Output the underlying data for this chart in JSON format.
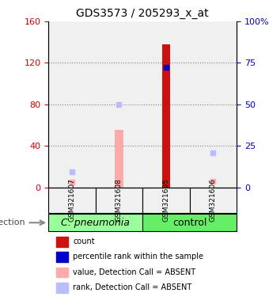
{
  "title": "GDS3573 / 205293_x_at",
  "samples": [
    "GSM321607",
    "GSM321608",
    "GSM321605",
    "GSM321606"
  ],
  "groups": [
    {
      "name": "C. pneumonia",
      "color": "#99ff99",
      "indices": [
        0,
        1
      ]
    },
    {
      "name": "control",
      "color": "#66ee66",
      "indices": [
        2,
        3
      ]
    }
  ],
  "left_ylim": [
    0,
    160
  ],
  "right_ylim": [
    0,
    100
  ],
  "left_yticks": [
    0,
    40,
    80,
    120,
    160
  ],
  "right_yticks": [
    0,
    25,
    50,
    75,
    100
  ],
  "right_yticklabels": [
    "0",
    "25",
    "50",
    "75",
    "100%"
  ],
  "dotted_lines": [
    40,
    80,
    120
  ],
  "bar_values": [
    null,
    55,
    138,
    null
  ],
  "bar_colors": [
    null,
    "#ffaaaa",
    "#cc1111",
    null
  ],
  "pink_dot_values": [
    5,
    2,
    null,
    6
  ],
  "blue_dot_values": [
    null,
    null,
    116,
    null
  ],
  "blue_sq_values": [
    15,
    80,
    null,
    33
  ],
  "bg_color": "#f0f0f0",
  "left_axis_color": "#cc0000",
  "right_axis_color": "#0000cc",
  "legend_items": [
    {
      "color": "#cc1111",
      "label": "count"
    },
    {
      "color": "#0000cc",
      "label": "percentile rank within the sample"
    },
    {
      "color": "#ffaaaa",
      "label": "value, Detection Call = ABSENT"
    },
    {
      "color": "#bbbbff",
      "label": "rank, Detection Call = ABSENT"
    }
  ],
  "infection_label": "infection",
  "group_label_fontsize": 9,
  "tick_fontsize": 8,
  "title_fontsize": 10
}
